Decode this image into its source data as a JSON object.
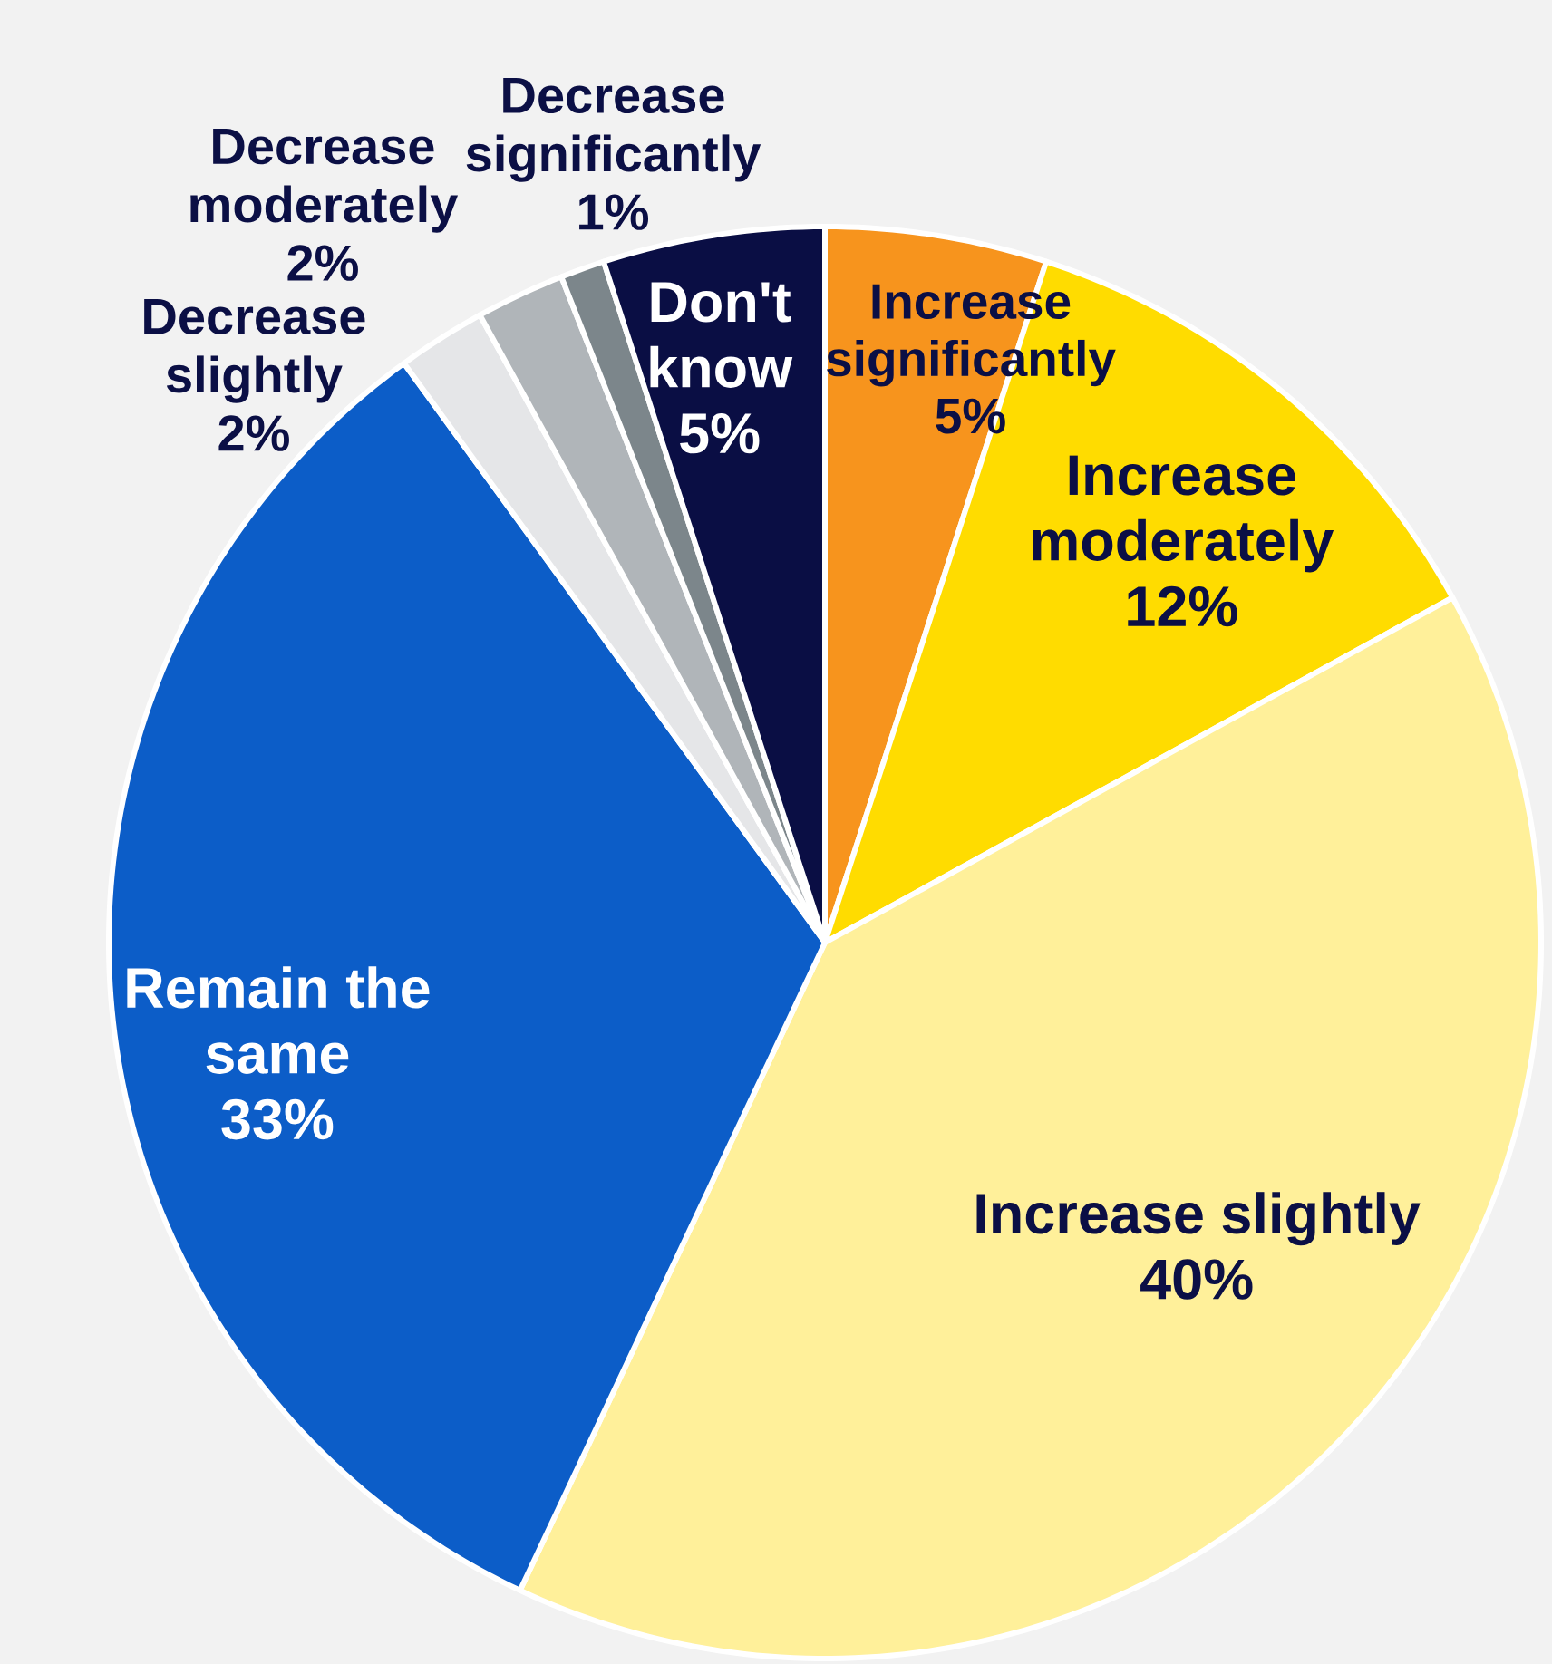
{
  "chart_data": {
    "type": "pie",
    "categories": [
      "Increase significantly",
      "Increase moderately",
      "Increase slightly",
      "Remain the same",
      "Decrease slightly",
      "Decrease moderately",
      "Decrease significantly",
      "Don't know"
    ],
    "values": [
      5,
      12,
      40,
      33,
      2,
      2,
      1,
      5
    ],
    "value_labels": [
      "5%",
      "12%",
      "40%",
      "33%",
      "2%",
      "2%",
      "1%",
      "5%"
    ],
    "colors": [
      "#f7941d",
      "#ffdc00",
      "#fff09a",
      "#0c5dc8",
      "#e5e6e8",
      "#b0b5b9",
      "#7c868b",
      "#0a0e44"
    ]
  }
}
